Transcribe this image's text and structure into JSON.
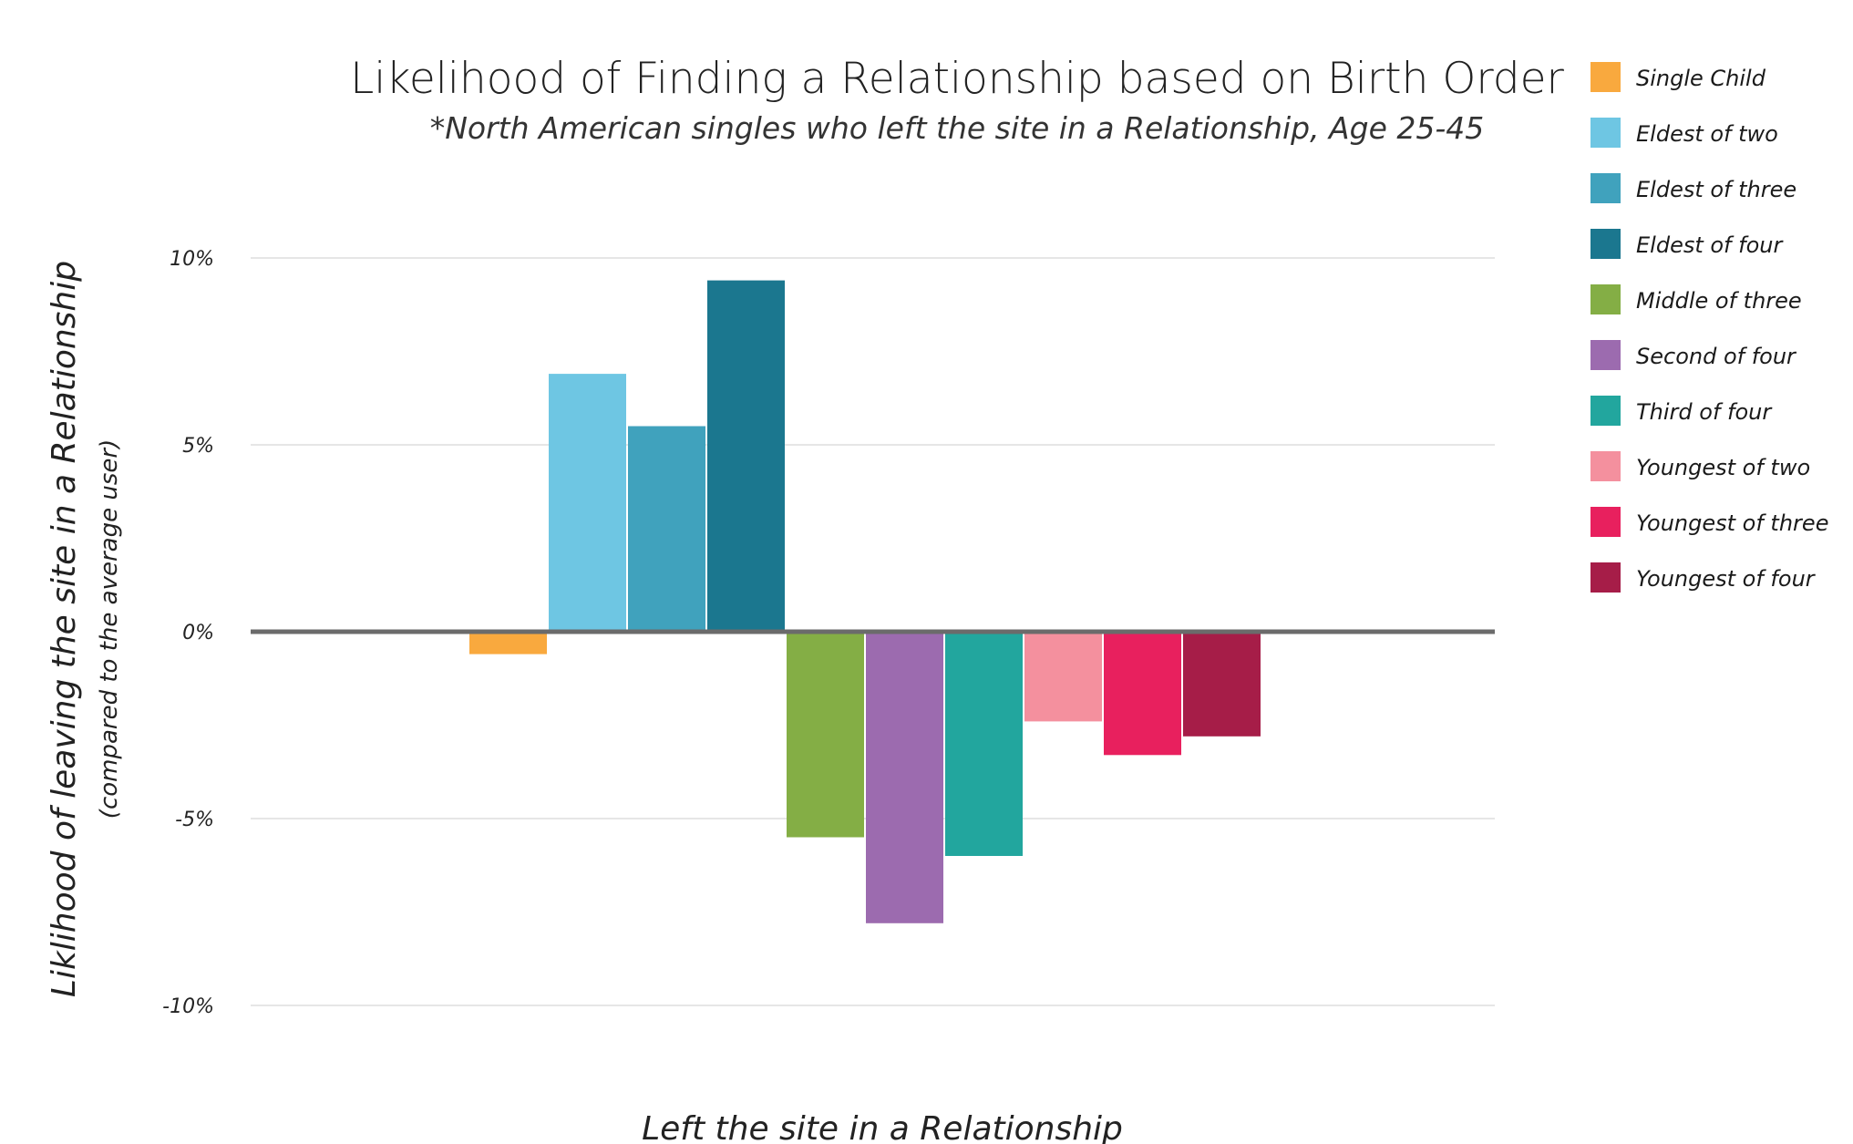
{
  "chart_data": {
    "type": "bar",
    "title": "Likelihood of Finding a Relationship based on Birth Order",
    "subtitle": "*North American singles who left the site in a Relationship, Age 25-45",
    "xlabel": "Left the site in a Relationship",
    "ylabel": "Liklihood of leaving the site in a Relationship",
    "ylabel_sub": "(compared to the average user)",
    "ylim": [
      -10,
      10
    ],
    "yticks": [
      {
        "value": 10,
        "label": "10%"
      },
      {
        "value": 5,
        "label": "5%"
      },
      {
        "value": 0,
        "label": "0%"
      },
      {
        "value": -5,
        "label": "-5%"
      },
      {
        "value": -10,
        "label": "-10%"
      }
    ],
    "grid": true,
    "legend_position": "right",
    "categories": [
      "Left the site in a Relationship"
    ],
    "series": [
      {
        "name": "Single Child",
        "values": [
          -0.6
        ],
        "color": "#F9A93E"
      },
      {
        "name": "Eldest of two",
        "values": [
          6.9
        ],
        "color": "#6EC6E3"
      },
      {
        "name": "Eldest of three",
        "values": [
          5.5
        ],
        "color": "#40A2BD"
      },
      {
        "name": "Eldest of four",
        "values": [
          9.4
        ],
        "color": "#1B778F"
      },
      {
        "name": "Middle of three",
        "values": [
          -5.5
        ],
        "color": "#84AE45"
      },
      {
        "name": "Second of four",
        "values": [
          -7.8
        ],
        "color": "#9C6BAF"
      },
      {
        "name": "Third of four",
        "values": [
          -6.0
        ],
        "color": "#22A69E"
      },
      {
        "name": "Youngest of two",
        "values": [
          -2.4
        ],
        "color": "#F4909E"
      },
      {
        "name": "Youngest of three",
        "values": [
          -3.3
        ],
        "color": "#E8205E"
      },
      {
        "name": "Youngest of four",
        "values": [
          -2.8
        ],
        "color": "#A61D48"
      }
    ]
  }
}
